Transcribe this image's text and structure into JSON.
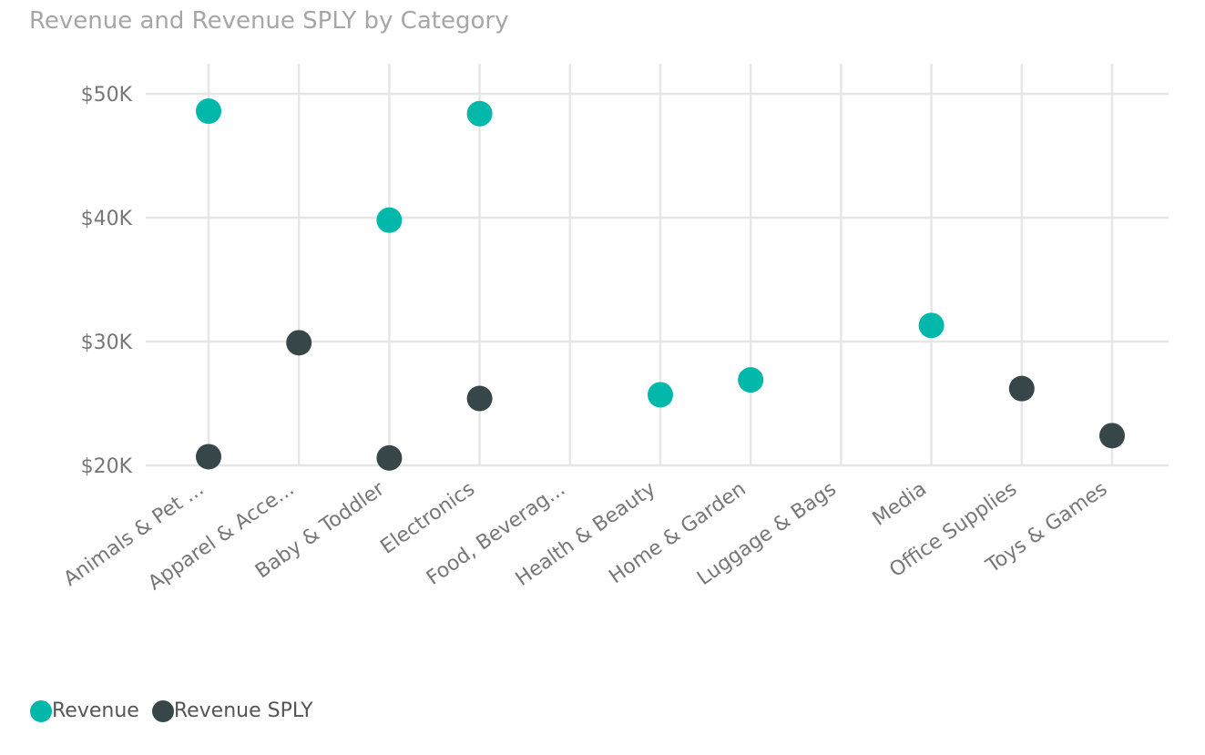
{
  "chart_data": {
    "type": "scatter",
    "title": "Revenue and Revenue SPLY by Category",
    "categories": [
      "Animals & Pet ...",
      "Apparel & Acce...",
      "Baby & Toddler",
      "Electronics",
      "Food, Beverag...",
      "Health & Beauty",
      "Home & Garden",
      "Luggage & Bags",
      "Media",
      "Office Supplies",
      "Toys & Games"
    ],
    "series": [
      {
        "name": "Revenue",
        "color": "#01b8aa",
        "values": [
          48600,
          null,
          39800,
          48400,
          null,
          25700,
          26900,
          null,
          31300,
          null,
          null
        ]
      },
      {
        "name": "Revenue SPLY",
        "color": "#374649",
        "values": [
          20700,
          29900,
          20600,
          25400,
          null,
          null,
          null,
          null,
          null,
          26200,
          22400
        ]
      }
    ],
    "y_ticks": [
      "$20K",
      "$30K",
      "$40K",
      "$50K"
    ],
    "y_tick_values": [
      20000,
      30000,
      40000,
      50000
    ],
    "ylim": [
      20000,
      50000
    ],
    "grid": true,
    "legend_position": "bottom-left",
    "xlabel": "",
    "ylabel": ""
  }
}
